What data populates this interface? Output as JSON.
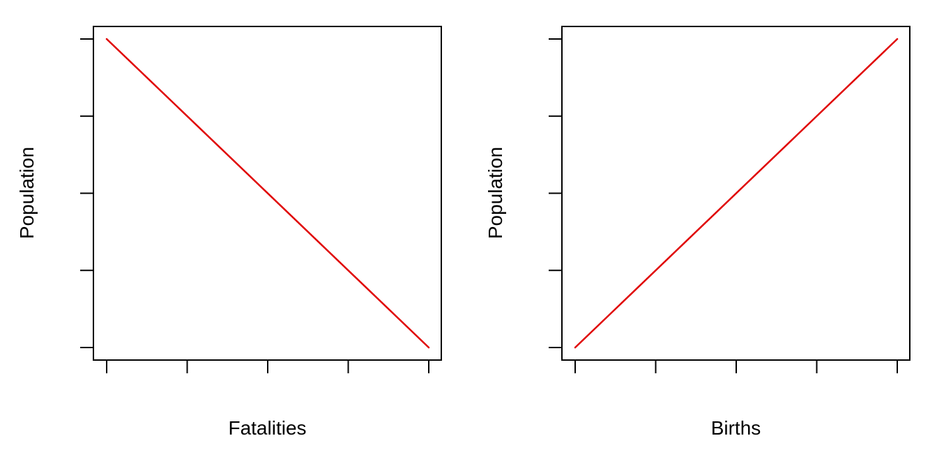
{
  "chart_data": [
    {
      "type": "line",
      "xlabel": "Fatalities",
      "ylabel": "Population",
      "xlim": [
        0,
        4
      ],
      "ylim": [
        0,
        4
      ],
      "x_ticks": [
        0,
        1,
        2,
        3,
        4
      ],
      "y_ticks": [
        0,
        1,
        2,
        3,
        4
      ],
      "tick_labels_shown": false,
      "grid": false,
      "series": [
        {
          "x": [
            0,
            4
          ],
          "y": [
            4,
            0
          ],
          "color": "#e00000"
        }
      ]
    },
    {
      "type": "line",
      "xlabel": "Births",
      "ylabel": "Population",
      "xlim": [
        0,
        4
      ],
      "ylim": [
        0,
        4
      ],
      "x_ticks": [
        0,
        1,
        2,
        3,
        4
      ],
      "y_ticks": [
        0,
        1,
        2,
        3,
        4
      ],
      "tick_labels_shown": false,
      "grid": false,
      "series": [
        {
          "x": [
            0,
            4
          ],
          "y": [
            0,
            4
          ],
          "color": "#e00000"
        }
      ]
    }
  ]
}
